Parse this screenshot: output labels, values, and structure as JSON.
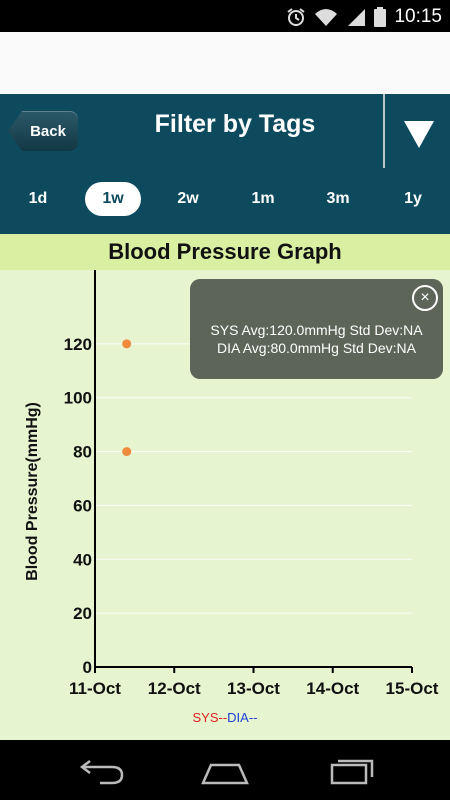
{
  "status_bar": {
    "time": "10:15",
    "icons": [
      "alarm-icon",
      "wifi-icon",
      "signal-icon",
      "battery-icon"
    ]
  },
  "header": {
    "back_label": "Back",
    "title": "Filter by Tags",
    "dropdown_icon": "triangle-down-icon"
  },
  "range_tabs": [
    {
      "label": "1d",
      "active": false
    },
    {
      "label": "1w",
      "active": true
    },
    {
      "label": "2w",
      "active": false
    },
    {
      "label": "1m",
      "active": false
    },
    {
      "label": "3m",
      "active": false
    },
    {
      "label": "1y",
      "active": false
    }
  ],
  "graph": {
    "title": "Blood Pressure Graph",
    "legend": {
      "sys": "SYS--",
      "dia": "DIA--"
    },
    "tooltip": {
      "sys_line": "SYS Avg:120.0mmHg Std Dev:NA",
      "dia_line": "DIA Avg:80.0mmHg Std Dev:NA"
    }
  },
  "chart_data": {
    "type": "scatter",
    "ylabel": "Blood Pressure(mmHg)",
    "xlabel": "",
    "x_categories": [
      "11-Oct",
      "12-Oct",
      "13-Oct",
      "14-Oct",
      "15-Oct"
    ],
    "y_ticks": [
      0,
      20,
      40,
      60,
      80,
      100,
      120
    ],
    "ylim": [
      0,
      140
    ],
    "grid": true,
    "series": [
      {
        "name": "SYS",
        "color": "#f08a3c",
        "points": [
          {
            "x": "11-Oct",
            "x_offset_days": 0.4,
            "y": 120
          }
        ]
      },
      {
        "name": "DIA",
        "color": "#f08a3c",
        "points": [
          {
            "x": "11-Oct",
            "x_offset_days": 0.4,
            "y": 80
          }
        ]
      }
    ],
    "legend_colors": {
      "sys": "#e02020",
      "dia": "#1f3fd6"
    }
  },
  "nav_bar": {
    "icons": [
      "back-nav-icon",
      "home-nav-icon",
      "recents-nav-icon"
    ]
  }
}
